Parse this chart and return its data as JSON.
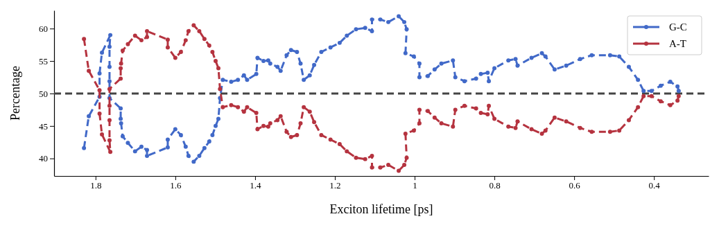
{
  "chart_data": {
    "type": "line",
    "xlabel": "Exciton lifetime [ps]",
    "ylabel": "Percentage",
    "x": [
      1.829,
      1.817,
      1.79,
      1.79,
      1.784,
      1.763,
      1.765,
      1.765,
      1.765,
      1.765,
      1.737,
      1.737,
      1.736,
      1.732,
      1.719,
      1.701,
      1.685,
      1.671,
      1.671,
      1.619,
      1.619,
      1.6,
      1.586,
      1.574,
      1.567,
      1.554,
      1.54,
      1.527,
      1.515,
      1.507,
      1.499,
      1.492,
      1.488,
      1.481,
      1.46,
      1.443,
      1.428,
      1.42,
      1.397,
      1.394,
      1.379,
      1.367,
      1.362,
      1.344,
      1.336,
      1.321,
      1.31,
      1.295,
      1.286,
      1.278,
      1.263,
      1.252,
      1.234,
      1.211,
      1.188,
      1.17,
      1.147,
      1.124,
      1.107,
      1.107,
      1.086,
      1.066,
      1.04,
      1.026,
      1.02,
      1.023,
      1.002,
      0.988,
      0.988,
      0.967,
      0.95,
      0.933,
      0.904,
      0.898,
      0.875,
      0.846,
      0.834,
      0.817,
      0.814,
      0.8,
      0.765,
      0.747,
      0.742,
      0.707,
      0.681,
      0.672,
      0.649,
      0.62,
      0.585,
      0.556,
      0.51,
      0.487,
      0.463,
      0.44,
      0.426,
      0.406,
      0.383,
      0.359,
      0.341,
      0.338
    ],
    "series": [
      {
        "name": "G-C",
        "color": "#4169c8",
        "values": [
          41.6,
          46.5,
          49.5,
          53.1,
          56.3,
          59.0,
          57.2,
          54.1,
          51.9,
          49.3,
          47.7,
          46.1,
          45.4,
          43.4,
          42.4,
          41.1,
          41.8,
          41.3,
          40.4,
          41.7,
          42.9,
          44.5,
          43.6,
          41.8,
          40.4,
          39.5,
          40.4,
          41.6,
          42.6,
          43.6,
          45.0,
          46.1,
          49.3,
          52.1,
          51.8,
          52.1,
          52.8,
          52.1,
          53.0,
          55.5,
          55.0,
          55.1,
          54.6,
          54.1,
          53.5,
          55.9,
          56.7,
          56.4,
          54.6,
          52.1,
          52.8,
          54.4,
          56.4,
          57.1,
          57.8,
          58.9,
          59.9,
          60.1,
          59.6,
          61.4,
          61.4,
          61.0,
          61.9,
          61.0,
          59.9,
          56.2,
          55.7,
          54.6,
          52.5,
          52.7,
          53.7,
          54.6,
          55.1,
          52.5,
          51.9,
          52.3,
          53.0,
          53.2,
          51.9,
          53.9,
          55.1,
          55.3,
          54.3,
          55.5,
          56.2,
          55.7,
          53.7,
          54.3,
          55.3,
          55.9,
          55.9,
          55.7,
          54.1,
          52.1,
          50.4,
          50.4,
          51.2,
          51.8,
          51.1,
          50.4
        ]
      },
      {
        "name": "A-T",
        "color": "#b5333f",
        "values": [
          58.4,
          53.5,
          50.5,
          46.9,
          43.7,
          41.0,
          42.8,
          45.9,
          48.1,
          50.7,
          52.3,
          53.9,
          54.6,
          56.6,
          57.6,
          58.9,
          58.2,
          58.7,
          59.6,
          58.3,
          57.1,
          55.5,
          56.4,
          58.2,
          59.6,
          60.5,
          59.6,
          58.4,
          57.4,
          56.4,
          55.0,
          53.9,
          50.7,
          47.9,
          48.2,
          47.9,
          47.2,
          47.9,
          47.0,
          44.5,
          45.0,
          44.9,
          45.4,
          45.9,
          46.5,
          44.1,
          43.3,
          43.6,
          45.4,
          47.9,
          47.2,
          45.6,
          43.6,
          42.9,
          42.2,
          41.1,
          40.1,
          39.9,
          40.4,
          38.6,
          38.6,
          39.0,
          38.1,
          39.0,
          40.1,
          43.8,
          44.3,
          45.4,
          47.5,
          47.3,
          46.3,
          45.4,
          44.9,
          47.5,
          48.1,
          47.7,
          47.0,
          46.8,
          48.1,
          46.1,
          44.9,
          44.7,
          45.7,
          44.5,
          43.8,
          44.3,
          46.3,
          45.7,
          44.7,
          44.1,
          44.1,
          44.3,
          45.9,
          47.9,
          49.6,
          49.6,
          48.8,
          48.2,
          48.9,
          49.6
        ]
      }
    ],
    "xlim": [
      1.904,
      0.263
    ],
    "xticks": [
      1.8,
      1.6,
      1.4,
      1.2,
      1.0,
      0.8,
      0.6,
      0.4
    ],
    "ylim": [
      37.3,
      62.8
    ],
    "yticks": [
      40,
      45,
      50,
      55,
      60
    ],
    "ref_lines": [
      {
        "axis": "y",
        "value": 50,
        "color": "#444444",
        "line_style": "dashed"
      }
    ],
    "marker": "circle",
    "line_style": "dashed",
    "legend": "top right",
    "grid": false
  }
}
